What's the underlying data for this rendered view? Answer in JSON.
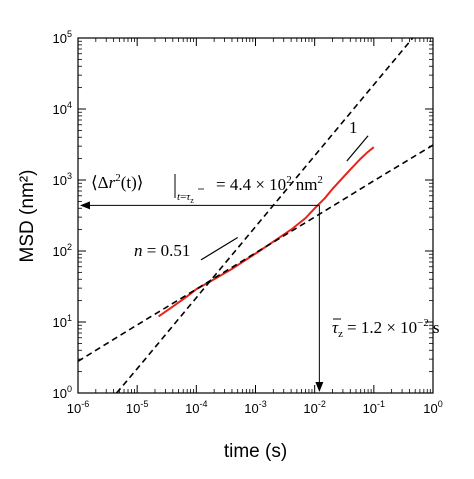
{
  "chart_data": {
    "type": "line",
    "title": "",
    "xlabel": "time (s)",
    "ylabel": "MSD (nm²)",
    "xscale": "log",
    "yscale": "log",
    "xlim": [
      1e-06,
      1
    ],
    "ylim": [
      1,
      100000
    ],
    "x_tick_labels": [
      {
        "value": 1e-06,
        "base": "10",
        "exp": "-6"
      },
      {
        "value": 1e-05,
        "base": "10",
        "exp": "-5"
      },
      {
        "value": 0.0001,
        "base": "10",
        "exp": "-4"
      },
      {
        "value": 0.001,
        "base": "10",
        "exp": "-3"
      },
      {
        "value": 0.01,
        "base": "10",
        "exp": "-2"
      },
      {
        "value": 0.1,
        "base": "10",
        "exp": "-1"
      },
      {
        "value": 1,
        "base": "10",
        "exp": "0"
      }
    ],
    "y_tick_labels": [
      {
        "value": 1,
        "base": "10",
        "exp": "0"
      },
      {
        "value": 10,
        "base": "10",
        "exp": "1"
      },
      {
        "value": 100,
        "base": "10",
        "exp": "2"
      },
      {
        "value": 1000,
        "base": "10",
        "exp": "3"
      },
      {
        "value": 10000,
        "base": "10",
        "exp": "4"
      },
      {
        "value": 100000,
        "base": "10",
        "exp": "5"
      }
    ],
    "grid": false,
    "series": [
      {
        "color": "#e8231a",
        "style": "solid",
        "x": [
          2.3e-05,
          4e-05,
          7e-05,
          0.0001,
          0.0002,
          0.0004,
          0.0007,
          0.001,
          0.002,
          0.004,
          0.007,
          0.01,
          0.015,
          0.02,
          0.03,
          0.04,
          0.06,
          0.08,
          0.1
        ],
        "y": [
          12,
          16.5,
          23,
          29,
          40,
          56,
          76,
          92,
          135,
          200,
          290,
          400,
          560,
          750,
          1080,
          1400,
          2000,
          2500,
          2900
        ]
      },
      {
        "color": "#000000",
        "style": "dashed",
        "x": [
          1e-06,
          1e-05,
          0.0001,
          0.001,
          0.01,
          0.1,
          1
        ],
        "y": [
          2.8,
          9.1,
          29,
          94,
          300,
          975,
          3100
        ]
      },
      {
        "color": "#000000",
        "style": "dashed",
        "x": [
          4.5e-06,
          1e-05,
          0.0001,
          0.001,
          0.01,
          0.1,
          1
        ],
        "y": [
          1,
          2.2,
          22,
          220,
          2200,
          22000,
          220000
        ]
      }
    ],
    "guides": {
      "value_line": {
        "x": 0.012,
        "y": 440,
        "color": "#000000"
      }
    },
    "slope_marks": [
      {
        "label": "n = 0.51",
        "x1": 0.00012,
        "y1": 75,
        "x2": 0.0005,
        "y2": 155
      },
      {
        "label": "1",
        "x1": 0.035,
        "y1": 1850,
        "x2": 0.08,
        "y2": 4200
      }
    ],
    "annotations": {
      "msd_left": "⟨Δ",
      "msd_r": "r",
      "msd_sup": "2",
      "msd_t": "(t)⟩",
      "msd_sub_t": "t",
      "msd_sub_eq": "=",
      "msd_sub_tau": "τ",
      "msd_sub_z": "z",
      "msd_value": "= 4.4 × 10",
      "msd_value_exp": "2",
      "msd_unit": "nm",
      "msd_unit_exp": "2",
      "n_label": "n = 0.51",
      "slope_one": "1",
      "tau_sym": "τ",
      "tau_sub": "z",
      "tau_value": "= 1.2 × 10",
      "tau_exp": "−2",
      "tau_unit": "s"
    }
  }
}
